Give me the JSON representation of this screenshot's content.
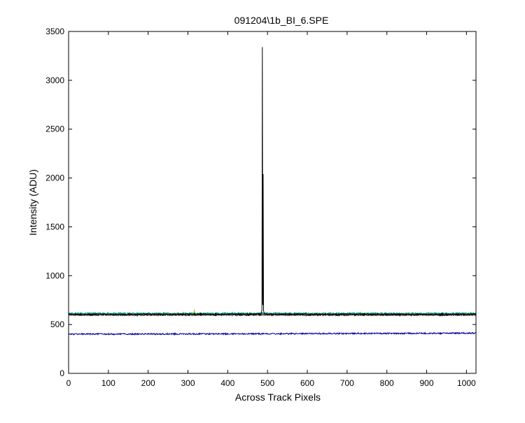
{
  "chart_data": {
    "type": "line",
    "title": "091204\\1b_BI_6.SPE",
    "xlabel": "Across Track Pixels",
    "ylabel": "Intensity (ADU)",
    "xlim": [
      0,
      1024
    ],
    "ylim": [
      0,
      3500
    ],
    "xticks": [
      0,
      100,
      200,
      300,
      400,
      500,
      600,
      700,
      800,
      900,
      1000
    ],
    "yticks": [
      0,
      500,
      1000,
      1500,
      2000,
      2500,
      3000,
      3500
    ],
    "grid": false,
    "legend": "none",
    "series": [
      {
        "color": "#000000",
        "baseline": 600,
        "noise": 8,
        "points": [
          [
            0,
            603
          ],
          [
            484,
            605
          ],
          [
            486,
            650
          ],
          [
            487,
            3340
          ],
          [
            488,
            700
          ],
          [
            489,
            2040
          ],
          [
            490,
            640
          ],
          [
            492,
            605
          ],
          [
            1024,
            603
          ]
        ]
      },
      {
        "color": "#00a0a0",
        "baseline": 610,
        "noise": 10,
        "points": [
          [
            0,
            612
          ],
          [
            1024,
            612
          ]
        ]
      },
      {
        "color": "#d03030",
        "baseline": 606,
        "noise": 9,
        "points": [
          [
            0,
            606
          ],
          [
            1024,
            606
          ]
        ]
      },
      {
        "color": "#208020",
        "baseline": 604,
        "noise": 9,
        "points": [
          [
            0,
            604
          ],
          [
            1024,
            604
          ]
        ]
      },
      {
        "color": "#c0c000",
        "baseline": 608,
        "noise": 8,
        "points": [
          [
            0,
            608
          ],
          [
            315,
            608
          ],
          [
            316,
            655
          ],
          [
            317,
            608
          ],
          [
            1024,
            608
          ]
        ]
      },
      {
        "color": "#000000",
        "baseline": 598,
        "noise": 7,
        "points": [
          [
            0,
            598
          ],
          [
            1024,
            598
          ]
        ]
      },
      {
        "color": "#0000a0",
        "baseline": 405,
        "noise": 7,
        "points": [
          [
            0,
            402
          ],
          [
            500,
            405
          ],
          [
            1024,
            412
          ]
        ]
      }
    ]
  }
}
